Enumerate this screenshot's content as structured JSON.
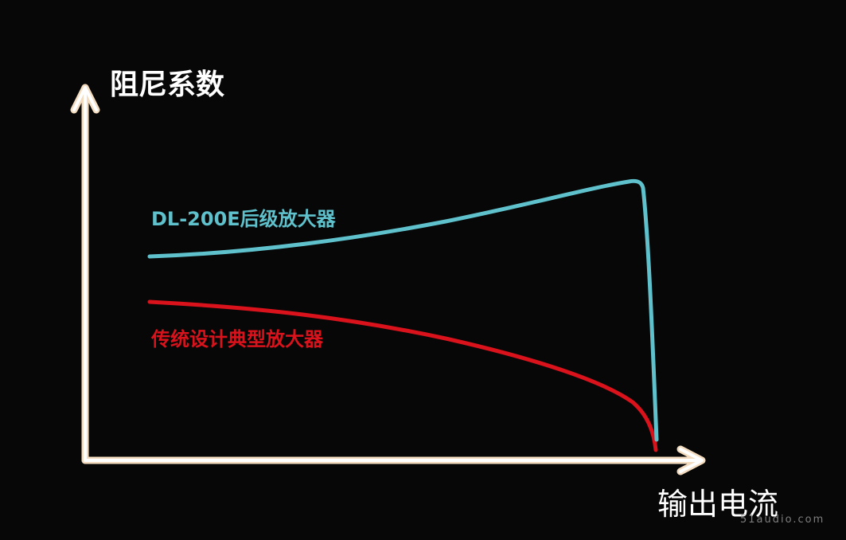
{
  "axes": {
    "y_label": "阻尼系数",
    "x_label": "输出电流"
  },
  "curves": [
    {
      "label": "DL-200E后级放大器"
    },
    {
      "label": "传统设计典型放大器"
    }
  ],
  "watermark": "51audio.com"
}
